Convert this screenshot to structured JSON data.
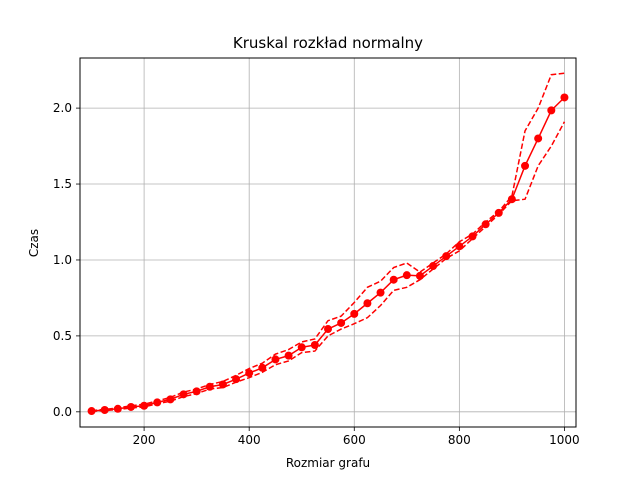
{
  "chart_data": {
    "type": "line",
    "title": "Kruskal rozkład normalny",
    "xlabel": "Rozmiar grafu",
    "ylabel": "Czas",
    "xlim": [
      78,
      1022
    ],
    "ylim": [
      -0.1,
      2.33
    ],
    "xticks": [
      200,
      400,
      600,
      800,
      1000
    ],
    "yticks": [
      0.0,
      0.5,
      1.0,
      1.5,
      2.0
    ],
    "xtick_labels": [
      "200",
      "400",
      "600",
      "800",
      "1000"
    ],
    "ytick_labels": [
      "0.0",
      "0.5",
      "1.0",
      "1.5",
      "2.0"
    ],
    "grid": true,
    "color": "#ff0000",
    "x": [
      100,
      125,
      150,
      175,
      200,
      225,
      250,
      275,
      300,
      325,
      350,
      375,
      400,
      425,
      450,
      475,
      500,
      525,
      550,
      575,
      600,
      625,
      650,
      675,
      700,
      725,
      750,
      775,
      800,
      825,
      850,
      875,
      900,
      925,
      950,
      975,
      1000
    ],
    "series": [
      {
        "role": "mean",
        "style": "solid-with-markers",
        "values": [
          0.005,
          0.012,
          0.02,
          0.032,
          0.04,
          0.062,
          0.082,
          0.115,
          0.135,
          0.165,
          0.18,
          0.215,
          0.255,
          0.29,
          0.345,
          0.37,
          0.425,
          0.44,
          0.545,
          0.585,
          0.645,
          0.715,
          0.785,
          0.87,
          0.9,
          0.895,
          0.96,
          1.025,
          1.09,
          1.155,
          1.235,
          1.31,
          1.4,
          1.62,
          1.8,
          1.985,
          2.07
        ]
      },
      {
        "role": "upper-bound",
        "style": "dashed",
        "values": [
          0.008,
          0.016,
          0.026,
          0.04,
          0.05,
          0.072,
          0.095,
          0.13,
          0.15,
          0.18,
          0.2,
          0.24,
          0.285,
          0.32,
          0.38,
          0.41,
          0.46,
          0.48,
          0.6,
          0.63,
          0.72,
          0.82,
          0.86,
          0.95,
          0.98,
          0.92,
          0.98,
          1.04,
          1.12,
          1.17,
          1.25,
          1.32,
          1.42,
          1.85,
          2.0,
          2.22,
          2.23
        ]
      },
      {
        "role": "lower-bound",
        "style": "dashed",
        "values": [
          0.003,
          0.008,
          0.015,
          0.025,
          0.032,
          0.053,
          0.07,
          0.1,
          0.12,
          0.15,
          0.16,
          0.195,
          0.225,
          0.26,
          0.31,
          0.335,
          0.39,
          0.4,
          0.5,
          0.545,
          0.58,
          0.62,
          0.7,
          0.8,
          0.82,
          0.87,
          0.94,
          1.01,
          1.06,
          1.14,
          1.22,
          1.3,
          1.39,
          1.4,
          1.62,
          1.75,
          1.91
        ]
      }
    ]
  }
}
